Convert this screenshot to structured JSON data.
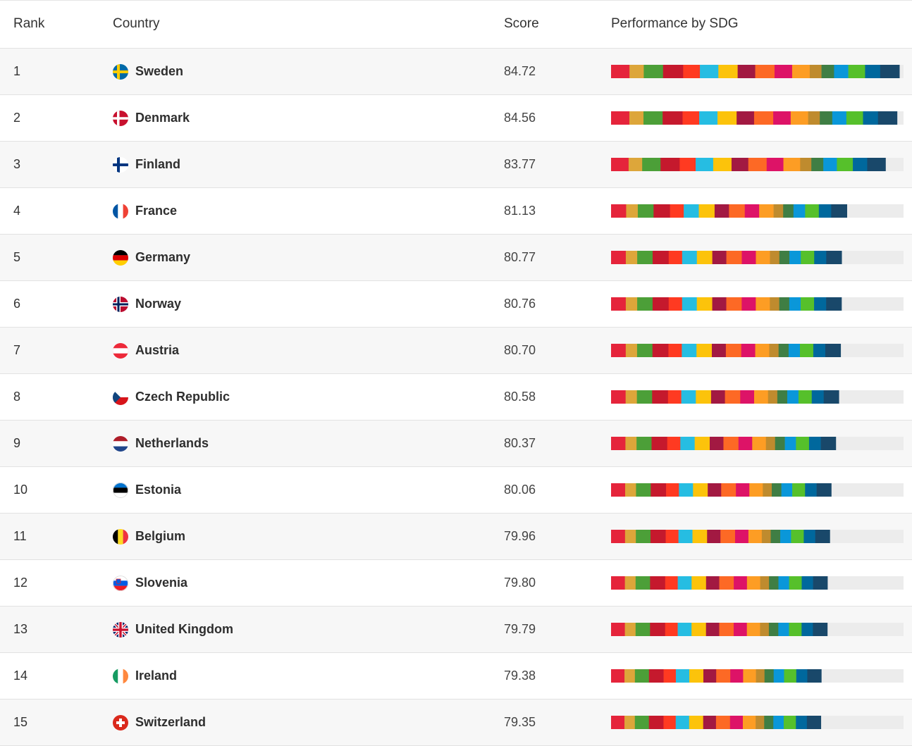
{
  "table": {
    "headers": {
      "rank": "Rank",
      "country": "Country",
      "score": "Score",
      "performance": "Performance by SDG"
    },
    "sdg_colors": [
      "#e5243b",
      "#dda63a",
      "#4c9f38",
      "#c5192d",
      "#ff3a21",
      "#26bde2",
      "#fcc30b",
      "#a21942",
      "#fd6925",
      "#dd1367",
      "#fd9d24",
      "#bf8b2e",
      "#3f7e44",
      "#0a97d9",
      "#56c02b",
      "#00689d",
      "#19486a"
    ],
    "rows": [
      {
        "rank": "1",
        "country": "Sweden",
        "score": "84.72",
        "flag": "sweden"
      },
      {
        "rank": "2",
        "country": "Denmark",
        "score": "84.56",
        "flag": "denmark"
      },
      {
        "rank": "3",
        "country": "Finland",
        "score": "83.77",
        "flag": "finland"
      },
      {
        "rank": "4",
        "country": "France",
        "score": "81.13",
        "flag": "france"
      },
      {
        "rank": "5",
        "country": "Germany",
        "score": "80.77",
        "flag": "germany"
      },
      {
        "rank": "6",
        "country": "Norway",
        "score": "80.76",
        "flag": "norway"
      },
      {
        "rank": "7",
        "country": "Austria",
        "score": "80.70",
        "flag": "austria"
      },
      {
        "rank": "8",
        "country": "Czech Republic",
        "score": "80.58",
        "flag": "czech"
      },
      {
        "rank": "9",
        "country": "Netherlands",
        "score": "80.37",
        "flag": "netherlands"
      },
      {
        "rank": "10",
        "country": "Estonia",
        "score": "80.06",
        "flag": "estonia"
      },
      {
        "rank": "11",
        "country": "Belgium",
        "score": "79.96",
        "flag": "belgium"
      },
      {
        "rank": "12",
        "country": "Slovenia",
        "score": "79.80",
        "flag": "slovenia"
      },
      {
        "rank": "13",
        "country": "United Kingdom",
        "score": "79.79",
        "flag": "uk"
      },
      {
        "rank": "14",
        "country": "Ireland",
        "score": "79.38",
        "flag": "ireland"
      },
      {
        "rank": "15",
        "country": "Switzerland",
        "score": "79.35",
        "flag": "switzerland"
      }
    ]
  }
}
